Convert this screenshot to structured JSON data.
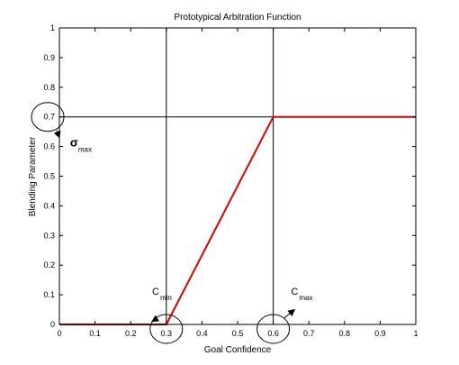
{
  "chart_data": {
    "type": "line",
    "title": "Prototypical Arbitration Function",
    "xlabel": "Goal Confidence",
    "ylabel": "Blending Parameter",
    "xlim": [
      0,
      1
    ],
    "ylim": [
      0,
      1
    ],
    "xticks": [
      0,
      0.1,
      0.2,
      0.3,
      0.4,
      0.5,
      0.6,
      0.7,
      0.8,
      0.9,
      1
    ],
    "yticks": [
      0,
      0.1,
      0.2,
      0.3,
      0.4,
      0.5,
      0.6,
      0.7,
      0.8,
      0.9,
      1
    ],
    "grid": false,
    "series": [
      {
        "color": "#dd0000",
        "x": [
          0,
          0.3,
          0.6,
          1
        ],
        "y": [
          0,
          0,
          0.7,
          0.7
        ]
      }
    ],
    "reference_lines": [
      {
        "orientation": "vertical",
        "value": 0.3,
        "color": "#000000"
      },
      {
        "orientation": "vertical",
        "value": 0.6,
        "color": "#000000"
      },
      {
        "orientation": "horizontal",
        "value": 0.7,
        "color": "#000000"
      }
    ],
    "annotations": [
      {
        "symbol": "σ",
        "subscript": "max",
        "circled_axis": "y",
        "circled_value": 0.7,
        "arrow_to": [
          0.0,
          0.63
        ],
        "label_at": [
          0.03,
          0.6
        ]
      },
      {
        "symbol": "C",
        "subscript": "min",
        "circled_axis": "x",
        "circled_value": 0.3,
        "arrow_to": [
          0.26,
          0.01
        ],
        "label_at": [
          0.26,
          0.1
        ]
      },
      {
        "symbol": "C",
        "subscript": "max",
        "circled_axis": "x",
        "circled_value": 0.6,
        "arrow_to": [
          0.66,
          0.05
        ],
        "label_at": [
          0.65,
          0.1
        ]
      }
    ]
  }
}
